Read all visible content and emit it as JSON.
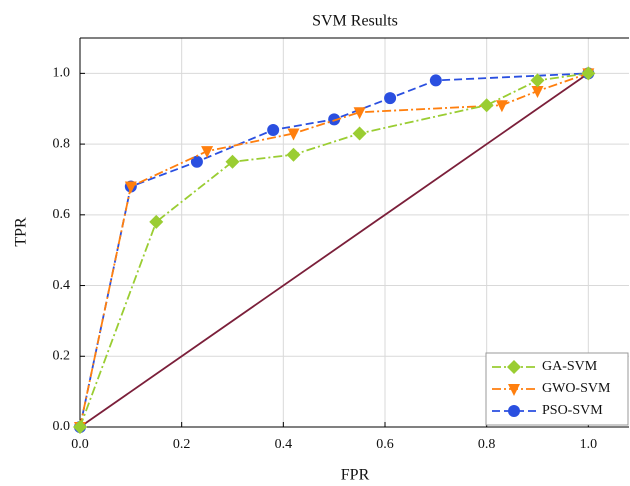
{
  "chart_data": {
    "type": "line",
    "title": "SVM Results",
    "x_label": "FPR",
    "y_label": "TPR",
    "xlim": [
      0,
      1.08
    ],
    "ylim": [
      0,
      1.1
    ],
    "xticks": [
      {
        "value": 0,
        "label": "0.0"
      },
      0.2,
      0.4,
      0.6,
      0.8,
      {
        "value": 1,
        "label": "1.0"
      }
    ],
    "yticks": [
      {
        "value": 0,
        "label": "0.0"
      },
      0.2,
      0.4,
      0.6,
      0.8,
      {
        "value": 1,
        "label": "1.0"
      }
    ],
    "grid": true,
    "legend": "lower right",
    "series": [
      {
        "name": "GA-SVM",
        "color": "#9ACD32",
        "marker": "diamond",
        "dash": "dashdot",
        "x": [
          0,
          0.15,
          0.3,
          0.42,
          0.55,
          0.8,
          0.9,
          1
        ],
        "values": [
          0,
          0.58,
          0.75,
          0.77,
          0.83,
          0.91,
          0.98,
          1
        ]
      },
      {
        "name": "GWO-SVM",
        "color": "#FF7F0E",
        "marker": "triangle-down",
        "dash": "dashdot",
        "x": [
          0,
          0.1,
          0.25,
          0.42,
          0.55,
          0.83,
          0.9,
          1
        ],
        "values": [
          0,
          0.68,
          0.78,
          0.83,
          0.89,
          0.91,
          0.95,
          1
        ]
      },
      {
        "name": "PSO-SVM",
        "color": "#2A4FE0",
        "marker": "circle",
        "dash": "dashed",
        "x": [
          0,
          0.1,
          0.23,
          0.38,
          0.5,
          0.61,
          0.7,
          1
        ],
        "values": [
          0,
          0.68,
          0.75,
          0.84,
          0.87,
          0.93,
          0.98,
          1
        ]
      },
      {
        "color": "#7B1F3A",
        "marker": "none",
        "dash": "solid",
        "x": [
          0,
          1
        ],
        "values": [
          0,
          1
        ]
      }
    ]
  }
}
